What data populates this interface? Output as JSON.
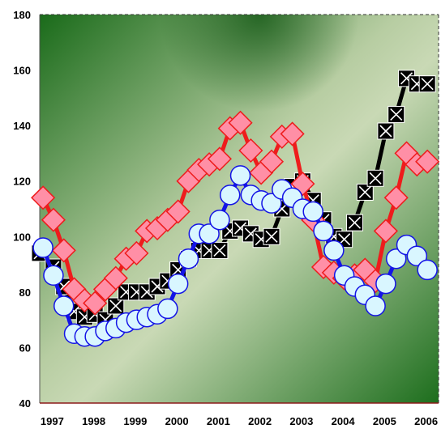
{
  "chart_data": {
    "type": "line",
    "title": "",
    "xlabel": "",
    "ylabel": "",
    "ylim": [
      40,
      180
    ],
    "xlim": [
      1997.0,
      2006.6
    ],
    "y_ticks": [
      40,
      60,
      80,
      100,
      120,
      140,
      160,
      180
    ],
    "x_ticks": [
      1997,
      1998,
      1999,
      2000,
      2001,
      2002,
      2003,
      2004,
      2005,
      2006
    ],
    "grid": false,
    "legend": "none",
    "background": "green gradient",
    "series": [
      {
        "marker": "black square with white X",
        "line_color": "#000000",
        "x": [
          1997.0,
          1997.33,
          1997.58,
          1997.83,
          1998.08,
          1998.33,
          1998.58,
          1998.83,
          1999.08,
          1999.33,
          1999.58,
          1999.83,
          2000.08,
          2000.33,
          2000.58,
          2000.83,
          2001.08,
          2001.33,
          2001.58,
          2001.83,
          2002.08,
          2002.33,
          2002.58,
          2002.83,
          2003.08,
          2003.33,
          2003.58,
          2003.83,
          2004.08,
          2004.33,
          2004.58,
          2004.83,
          2005.08,
          2005.33,
          2005.58,
          2005.83,
          2006.08,
          2006.33
        ],
        "values": [
          94,
          89,
          82,
          73,
          71,
          72,
          70,
          75,
          80,
          80,
          80,
          82,
          84,
          88,
          92,
          95,
          95,
          95,
          102,
          103,
          101,
          99,
          100,
          110,
          118,
          120,
          113,
          106,
          100,
          99,
          105,
          116,
          121,
          138,
          144,
          157,
          155,
          155
        ]
      },
      {
        "marker": "pink diamond",
        "line_color": "#ee1c1c",
        "x": [
          1997.08,
          1997.33,
          1997.58,
          1997.83,
          1998.08,
          1998.33,
          1998.58,
          1998.83,
          1999.08,
          1999.33,
          1999.58,
          1999.83,
          2000.08,
          2000.33,
          2000.58,
          2000.83,
          2001.08,
          2001.33,
          2001.58,
          2001.83,
          2002.08,
          2002.33,
          2002.58,
          2002.83,
          2003.08,
          2003.33,
          2003.58,
          2003.83,
          2004.08,
          2004.33,
          2004.58,
          2004.83,
          2005.08,
          2005.33,
          2005.58,
          2005.83,
          2006.08,
          2006.33
        ],
        "values": [
          114,
          106,
          95,
          81,
          77,
          76,
          81,
          85,
          92,
          94,
          102,
          103,
          106,
          109,
          120,
          124,
          126,
          128,
          139,
          141,
          131,
          123,
          127,
          136,
          137,
          119,
          106,
          89,
          87,
          85,
          86,
          88,
          84,
          102,
          114,
          130,
          126,
          127
        ]
      },
      {
        "marker": "light-blue circle",
        "line_color": "#1414e6",
        "x": [
          1997.08,
          1997.33,
          1997.58,
          1997.83,
          1998.08,
          1998.33,
          1998.58,
          1998.83,
          1999.08,
          1999.33,
          1999.58,
          1999.83,
          2000.08,
          2000.33,
          2000.58,
          2000.83,
          2001.08,
          2001.33,
          2001.58,
          2001.83,
          2002.08,
          2002.33,
          2002.58,
          2002.83,
          2003.08,
          2003.33,
          2003.58,
          2003.83,
          2004.08,
          2004.33,
          2004.58,
          2004.83,
          2005.08,
          2005.33,
          2005.58,
          2005.83,
          2006.08,
          2006.33
        ],
        "values": [
          96,
          86,
          75,
          65,
          64,
          64,
          66,
          67,
          69,
          70,
          71,
          72,
          74,
          83,
          92,
          101,
          101,
          106,
          115,
          122,
          115,
          113,
          112,
          117,
          114,
          110,
          109,
          102,
          95,
          86,
          82,
          79,
          75,
          83,
          92,
          97,
          93,
          88
        ]
      }
    ]
  }
}
